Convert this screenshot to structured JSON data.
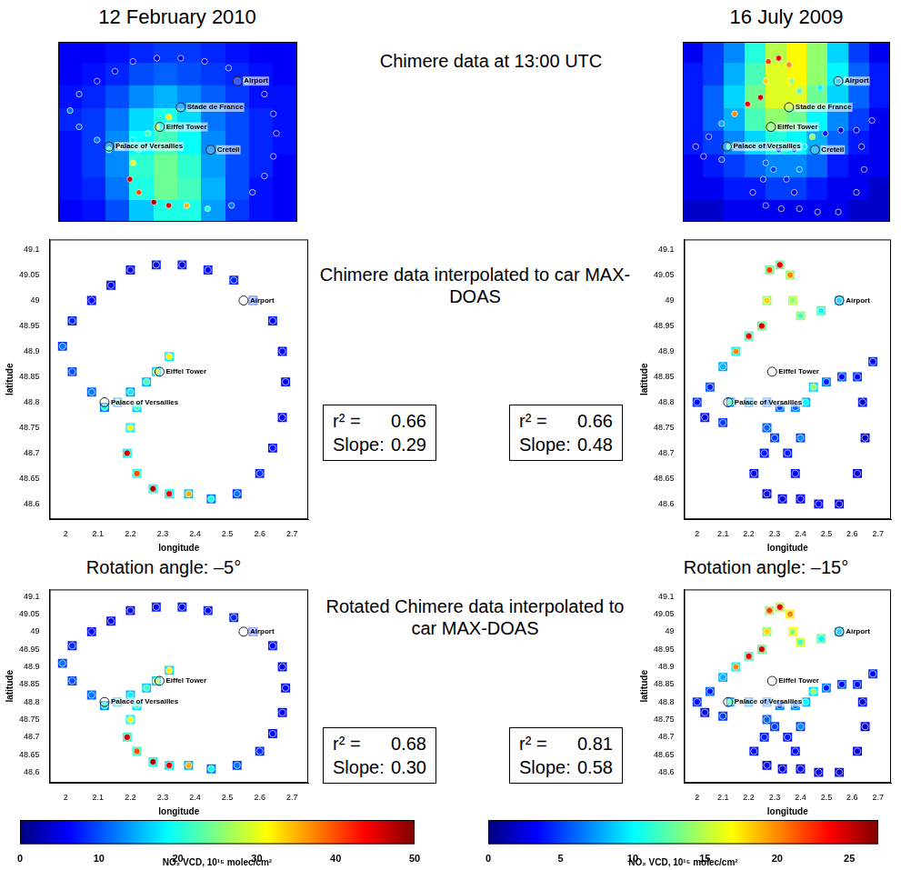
{
  "row_titles": [
    "Chimere data at 13:00 UTC",
    "Chimere data interpolated to car MAX-DOAS",
    "Rotated Chimere data interpolated to car MAX-DOAS"
  ],
  "stat_labels": {
    "r2": "r² =",
    "slope": "Slope:"
  },
  "chart_data": [
    {
      "type": "scatter",
      "title": "12 February 2010",
      "rotation": "Rotation angle: –5°",
      "colorbar": {
        "range": [
          0,
          50
        ],
        "ticks": [
          0,
          10,
          20,
          30,
          40,
          50
        ],
        "label": "NO₂ VCD, 10¹⁵ molec/cm²"
      },
      "stats": {
        "interpolated": {
          "r2": 0.66,
          "slope": 0.29
        },
        "rotated": {
          "r2": 0.68,
          "slope": {
            "value": 0.3,
            "label": "0.30"
          }
        }
      },
      "top_map": {
        "xlim": [
          1.95,
          2.75
        ],
        "ylim": [
          48.57,
          49.12
        ],
        "tick_labels": false,
        "landmarks": [
          {
            "label": "Airport",
            "x": 2.55,
            "y": 49.0
          },
          {
            "label": "Stade de France",
            "x": 2.36,
            "y": 48.92
          },
          {
            "label": "Eiffel Tower",
            "x": 2.29,
            "y": 48.86
          },
          {
            "label": "Palace of Versailles",
            "x": 2.12,
            "y": 48.8
          },
          {
            "label": "Creteil",
            "x": 2.46,
            "y": 48.79
          }
        ],
        "field": {
          "lon_edges": [
            1.95,
            2.03,
            2.11,
            2.19,
            2.27,
            2.35,
            2.43,
            2.51,
            2.59,
            2.67,
            2.75
          ],
          "lat_edges": [
            48.57,
            48.64,
            48.71,
            48.78,
            48.85,
            48.92,
            48.99,
            49.06,
            49.12
          ],
          "values": [
            [
              6,
              7,
              10,
              16,
              20,
              20,
              14,
              9,
              7,
              6
            ],
            [
              7,
              8,
              12,
              20,
              24,
              22,
              15,
              10,
              7,
              6
            ],
            [
              7,
              9,
              13,
              21,
              24,
              21,
              14,
              10,
              8,
              6
            ],
            [
              7,
              9,
              13,
              19,
              22,
              19,
              13,
              10,
              8,
              7
            ],
            [
              8,
              9,
              12,
              17,
              20,
              17,
              12,
              10,
              8,
              7
            ],
            [
              7,
              8,
              10,
              13,
              15,
              13,
              11,
              9,
              7,
              7
            ],
            [
              6,
              7,
              8,
              10,
              11,
              10,
              9,
              8,
              7,
              6
            ],
            [
              6,
              6,
              7,
              8,
              9,
              9,
              8,
              7,
              6,
              6
            ]
          ]
        }
      },
      "maps": {
        "xlim": [
          1.95,
          2.75
        ],
        "ylim": [
          48.57,
          49.12
        ],
        "xticks": [
          2,
          2.1,
          2.2,
          2.3,
          2.4,
          2.5,
          2.6,
          2.7
        ],
        "yticks": [
          48.6,
          48.65,
          48.7,
          48.75,
          48.8,
          48.85,
          48.9,
          48.95,
          49,
          49.05,
          49.1
        ],
        "xlabel": "longitude",
        "ylabel": "latitude",
        "landmarks": [
          {
            "label": "Airport",
            "x": 2.55,
            "y": 49.0
          },
          {
            "label": "Eiffel Tower",
            "x": 2.29,
            "y": 48.86
          },
          {
            "label": "Palace of Versailles",
            "x": 2.12,
            "y": 48.8
          }
        ]
      },
      "track": {
        "x": [
          2.32,
          2.28,
          2.25,
          2.2,
          2.16,
          2.12,
          2.08,
          2.02,
          1.99,
          2.02,
          2.08,
          2.14,
          2.2,
          2.28,
          2.36,
          2.44,
          2.52,
          2.58,
          2.64,
          2.67,
          2.68,
          2.67,
          2.64,
          2.6,
          2.53,
          2.45,
          2.38,
          2.32,
          2.27,
          2.22,
          2.19,
          2.2,
          2.22
        ],
        "y": [
          48.89,
          48.86,
          48.84,
          48.82,
          48.8,
          48.79,
          48.82,
          48.86,
          48.91,
          48.96,
          49.0,
          49.03,
          49.06,
          49.07,
          49.07,
          49.06,
          49.04,
          49.0,
          48.96,
          48.9,
          48.84,
          48.77,
          48.71,
          48.66,
          48.62,
          48.61,
          48.62,
          48.62,
          48.63,
          48.66,
          48.7,
          48.75,
          48.79
        ],
        "obs": [
          32,
          28,
          22,
          18,
          25,
          20,
          12,
          10,
          12,
          8,
          6,
          5,
          6,
          5,
          5,
          6,
          8,
          10,
          6,
          5,
          5,
          6,
          7,
          8,
          12,
          20,
          35,
          45,
          48,
          40,
          46,
          30,
          22
        ],
        "model": [
          18,
          17,
          15,
          14,
          13,
          12,
          11,
          10,
          9,
          8,
          7,
          7,
          7,
          8,
          8,
          8,
          8,
          8,
          8,
          7,
          7,
          7,
          7,
          8,
          9,
          12,
          16,
          19,
          20,
          20,
          19,
          18,
          16
        ],
        "model_rotated": [
          17,
          17,
          16,
          15,
          14,
          13,
          11,
          10,
          9,
          8,
          7,
          7,
          7,
          8,
          8,
          8,
          8,
          8,
          8,
          7,
          7,
          7,
          7,
          8,
          9,
          12,
          15,
          18,
          20,
          21,
          21,
          19,
          17
        ]
      }
    },
    {
      "type": "scatter",
      "title": "16 July 2009",
      "rotation": "Rotation angle: –15°",
      "colorbar": {
        "range": [
          0,
          27
        ],
        "ticks": [
          0,
          5,
          10,
          15,
          20,
          25
        ],
        "label": "NO₂ VCD, 10¹⁵ molec/cm²"
      },
      "stats": {
        "interpolated": {
          "r2": 0.66,
          "slope": 0.48
        },
        "rotated": {
          "r2": 0.81,
          "slope": 0.58
        }
      },
      "top_map": {
        "xlim": [
          1.95,
          2.75
        ],
        "ylim": [
          48.57,
          49.12
        ],
        "tick_labels": false,
        "landmarks": [
          {
            "label": "Airport",
            "x": 2.55,
            "y": 49.0
          },
          {
            "label": "Stade de France",
            "x": 2.36,
            "y": 48.92
          },
          {
            "label": "Eiffel Tower",
            "x": 2.29,
            "y": 48.86
          },
          {
            "label": "Palace of Versailles",
            "x": 2.12,
            "y": 48.8
          },
          {
            "label": "Creteil",
            "x": 2.46,
            "y": 48.79
          }
        ],
        "field": {
          "lon_edges": [
            1.95,
            2.03,
            2.11,
            2.19,
            2.27,
            2.35,
            2.43,
            2.51,
            2.59,
            2.67,
            2.75
          ],
          "lat_edges": [
            48.57,
            48.64,
            48.71,
            48.78,
            48.85,
            48.92,
            48.99,
            49.06,
            49.12
          ],
          "values": [
            [
              2,
              2,
              3,
              3,
              3,
              3,
              3,
              3,
              2,
              2
            ],
            [
              3,
              3,
              4,
              4,
              5,
              5,
              4,
              3,
              3,
              2
            ],
            [
              3,
              4,
              5,
              6,
              7,
              7,
              6,
              4,
              3,
              3
            ],
            [
              4,
              5,
              7,
              9,
              11,
              10,
              8,
              6,
              4,
              3
            ],
            [
              4,
              6,
              8,
              12,
              14,
              13,
              10,
              7,
              5,
              3
            ],
            [
              4,
              6,
              9,
              13,
              16,
              16,
              13,
              9,
              6,
              4
            ],
            [
              4,
              5,
              8,
              12,
              16,
              17,
              14,
              10,
              6,
              4
            ],
            [
              3,
              5,
              7,
              11,
              15,
              17,
              14,
              9,
              5,
              3
            ]
          ]
        }
      },
      "maps": {
        "xlim": [
          1.95,
          2.75
        ],
        "ylim": [
          48.57,
          49.12
        ],
        "xticks": [
          2,
          2.1,
          2.2,
          2.3,
          2.4,
          2.5,
          2.6,
          2.7
        ],
        "yticks": [
          48.6,
          48.65,
          48.7,
          48.75,
          48.8,
          48.85,
          48.9,
          48.95,
          49,
          49.05,
          49.1
        ],
        "xlabel": "longitude",
        "ylabel": "latitude",
        "landmarks": [
          {
            "label": "Airport",
            "x": 2.55,
            "y": 49.0
          },
          {
            "label": "Eiffel Tower",
            "x": 2.29,
            "y": 48.86
          },
          {
            "label": "Palace of Versailles",
            "x": 2.12,
            "y": 48.8
          }
        ]
      },
      "track": {
        "x": [
          2.55,
          2.48,
          2.4,
          2.37,
          2.36,
          2.32,
          2.28,
          2.27,
          2.25,
          2.2,
          2.15,
          2.1,
          2.05,
          2.0,
          2.03,
          2.1,
          2.13,
          2.2,
          2.27,
          2.32,
          2.38,
          2.42,
          2.45,
          2.5,
          2.56,
          2.62,
          2.64,
          2.65,
          2.62,
          2.55,
          2.47,
          2.4,
          2.33,
          2.27,
          2.22,
          2.26,
          2.3,
          2.35,
          2.38,
          2.27,
          2.4,
          2.68
        ],
        "y": [
          49.0,
          48.98,
          48.97,
          49.0,
          49.05,
          49.07,
          49.06,
          49.0,
          48.95,
          48.93,
          48.9,
          48.87,
          48.83,
          48.8,
          48.77,
          48.76,
          48.8,
          48.8,
          48.8,
          48.79,
          48.79,
          48.8,
          48.83,
          48.84,
          48.85,
          48.85,
          48.8,
          48.73,
          48.66,
          48.6,
          48.6,
          48.61,
          48.61,
          48.62,
          48.66,
          48.7,
          48.73,
          48.7,
          48.66,
          48.75,
          48.73,
          48.88
        ],
        "obs": [
          8,
          10,
          12,
          14,
          20,
          24,
          22,
          18,
          25,
          24,
          20,
          8,
          4,
          3,
          3,
          5,
          12,
          8,
          6,
          5,
          6,
          10,
          14,
          4,
          3,
          3,
          2,
          2,
          2,
          2,
          3,
          3,
          2,
          3,
          3,
          4,
          5,
          4,
          3,
          6,
          7,
          3
        ],
        "model": [
          9,
          12,
          14,
          15,
          14,
          13,
          13,
          14,
          13,
          12,
          10,
          8,
          6,
          5,
          4,
          5,
          7,
          7,
          7,
          7,
          7,
          8,
          9,
          7,
          6,
          5,
          4,
          3,
          3,
          3,
          3,
          3,
          3,
          3,
          4,
          4,
          5,
          4,
          4,
          6,
          5,
          5
        ],
        "model_rotated": [
          9,
          13,
          16,
          17,
          17,
          15,
          14,
          14,
          13,
          12,
          10,
          8,
          6,
          5,
          4,
          5,
          7,
          7,
          7,
          7,
          7,
          8,
          9,
          7,
          6,
          5,
          4,
          3,
          3,
          3,
          3,
          3,
          3,
          3,
          4,
          4,
          5,
          4,
          4,
          6,
          5,
          5
        ]
      }
    }
  ]
}
